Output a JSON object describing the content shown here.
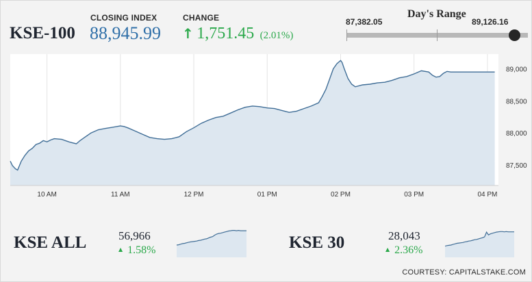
{
  "header": {
    "ticker": "KSE-100",
    "closing_label": "CLOSING INDEX",
    "closing_value": "88,945.99",
    "change_label": "CHANGE",
    "change_arrow": "↑",
    "change_value": "1,751.45",
    "change_percent": "(2.01%)"
  },
  "days_range": {
    "title": "Day's Range",
    "low": "87,382.05",
    "high": "89,126.16",
    "position": 1.0
  },
  "colors": {
    "line": "#3f6d96",
    "fill": "#dde7f0",
    "up": "#2aa84a",
    "accent": "#2f6fa8",
    "background": "#f3f3f3"
  },
  "chart_data": [
    {
      "type": "area",
      "title": "",
      "xlabel": "",
      "ylabel": "",
      "x_ticks": [
        "10 AM",
        "11 AM",
        "12 PM",
        "01 PM",
        "02 PM",
        "03 PM",
        "04 PM"
      ],
      "x_tick_hours": [
        10,
        11,
        12,
        13,
        14,
        15,
        16
      ],
      "y_ticks": [
        "87,500",
        "88,000",
        "88,500",
        "89,000"
      ],
      "y_tick_values": [
        87500,
        88000,
        88500,
        89000
      ],
      "xlim": [
        9.5,
        16.15
      ],
      "ylim": [
        87180,
        89230
      ],
      "grid": "vertical",
      "series": [
        {
          "x": [
            9.5,
            9.53,
            9.57,
            9.6,
            9.65,
            9.7,
            9.75,
            9.8,
            9.85,
            9.9,
            9.95,
            10.0,
            10.05,
            10.1,
            10.2,
            10.3,
            10.4,
            10.45,
            10.5,
            10.6,
            10.7,
            10.8,
            10.9,
            11.0,
            11.05,
            11.1,
            11.2,
            11.3,
            11.4,
            11.5,
            11.6,
            11.7,
            11.8,
            11.9,
            12.0,
            12.1,
            12.2,
            12.3,
            12.4,
            12.5,
            12.6,
            12.7,
            12.8,
            12.9,
            13.0,
            13.1,
            13.2,
            13.3,
            13.4,
            13.5,
            13.6,
            13.7,
            13.75,
            13.8,
            13.85,
            13.9,
            13.95,
            14.0,
            14.02,
            14.05,
            14.1,
            14.15,
            14.2,
            14.3,
            14.4,
            14.5,
            14.6,
            14.7,
            14.8,
            14.9,
            15.0,
            15.1,
            15.2,
            15.25,
            15.3,
            15.35,
            15.4,
            15.45,
            15.5,
            15.7,
            15.9,
            16.1
          ],
          "y": [
            87560,
            87490,
            87440,
            87420,
            87560,
            87650,
            87720,
            87760,
            87820,
            87840,
            87880,
            87860,
            87890,
            87910,
            87900,
            87860,
            87830,
            87880,
            87920,
            88000,
            88050,
            88070,
            88090,
            88110,
            88100,
            88080,
            88030,
            87980,
            87930,
            87910,
            87900,
            87910,
            87940,
            88020,
            88080,
            88150,
            88200,
            88240,
            88260,
            88310,
            88360,
            88400,
            88420,
            88410,
            88390,
            88380,
            88350,
            88320,
            88340,
            88380,
            88420,
            88470,
            88570,
            88680,
            88840,
            89000,
            89080,
            89130,
            89100,
            89000,
            88850,
            88760,
            88720,
            88750,
            88760,
            88780,
            88790,
            88820,
            88860,
            88880,
            88920,
            88970,
            88950,
            88900,
            88870,
            88880,
            88930,
            88960,
            88950,
            88950,
            88950,
            88950
          ]
        }
      ]
    },
    {
      "type": "area",
      "title": "",
      "name": "KSE ALL",
      "series": [
        {
          "values": [
            44,
            45,
            47,
            49,
            50,
            52,
            54,
            55,
            56,
            57,
            58,
            60,
            61,
            63,
            65,
            66,
            69,
            72,
            74,
            79,
            83,
            85,
            86,
            88,
            90,
            92,
            94,
            95,
            96,
            96,
            95,
            96,
            95,
            95,
            95,
            95
          ]
        }
      ]
    },
    {
      "type": "area",
      "title": "",
      "name": "KSE 30",
      "series": [
        {
          "values": [
            40,
            42,
            43,
            44,
            46,
            48,
            50,
            51,
            52,
            53,
            55,
            56,
            58,
            59,
            61,
            63,
            64,
            66,
            68,
            70,
            73,
            90,
            80,
            84,
            86,
            88,
            90,
            91,
            92,
            92,
            91,
            92,
            91,
            91,
            91,
            91
          ]
        }
      ]
    }
  ],
  "indices": [
    {
      "name": "KSE ALL",
      "value": "56,966",
      "arrow": "▲",
      "change": "1.58%"
    },
    {
      "name": "KSE 30",
      "value": "28,043",
      "arrow": "▲",
      "change": "2.36%"
    }
  ],
  "footer": {
    "courtesy": "COURTESY: CAPITALSTAKE.COM"
  }
}
